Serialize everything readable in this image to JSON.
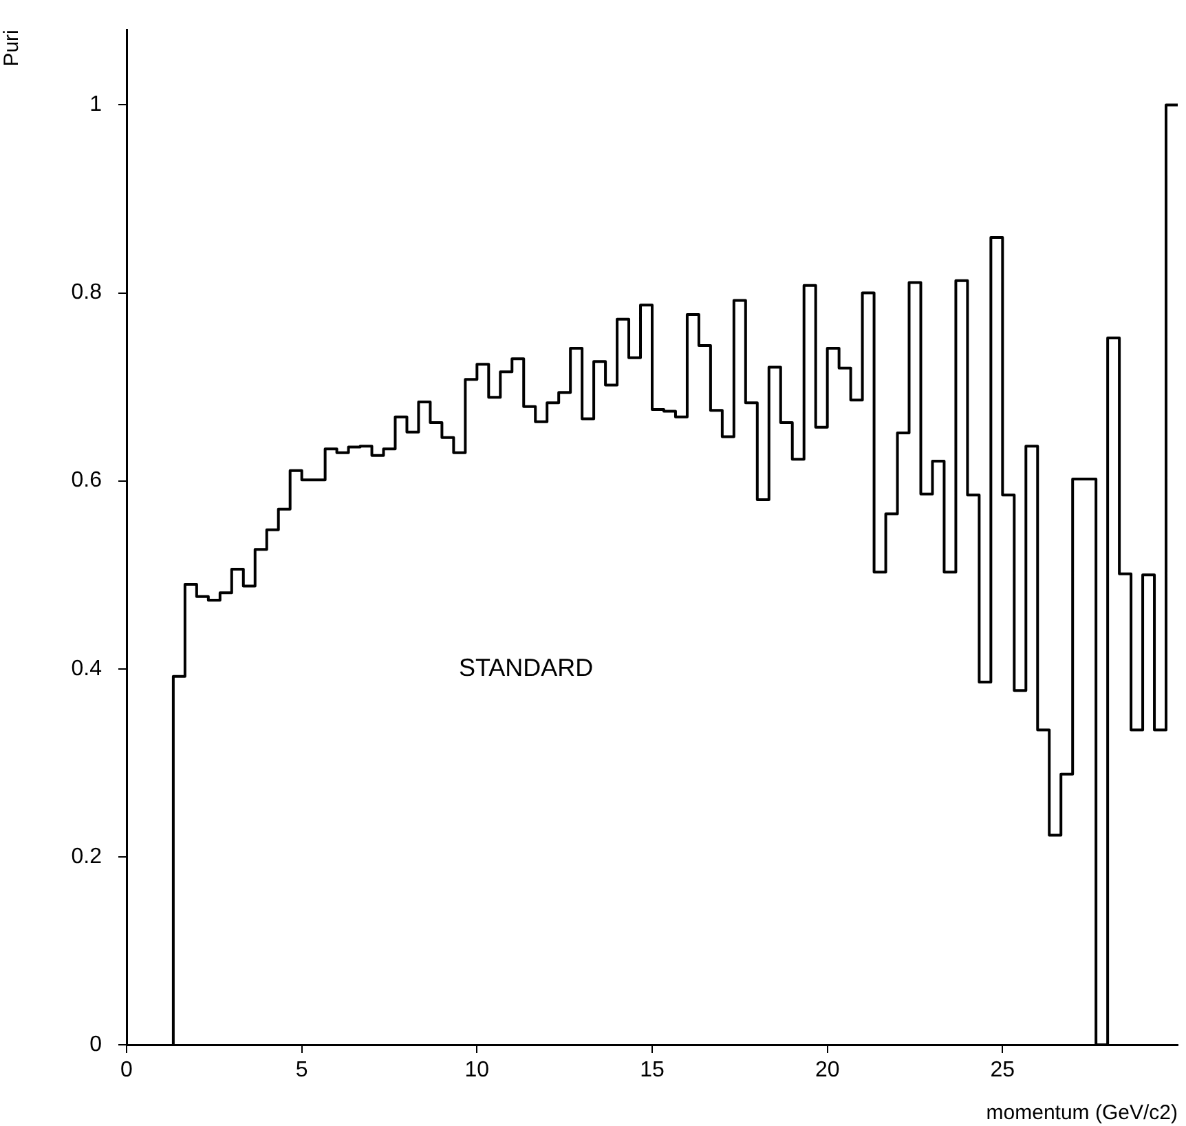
{
  "chart_data": {
    "type": "histogram",
    "xlabel": "momentum (GeV/c2)",
    "ylabel": "Puri",
    "annotations": [
      "STANDARD"
    ],
    "bins": [
      1.333,
      1.667,
      2,
      2.333,
      2.667,
      3,
      3.333,
      3.667,
      4,
      4.333,
      4.667,
      5,
      5.333,
      5.667,
      6,
      6.333,
      6.667,
      7,
      7.333,
      7.667,
      8,
      8.333,
      8.667,
      9,
      9.333,
      9.667,
      10,
      10.333,
      10.667,
      11,
      11.333,
      11.667,
      12,
      12.333,
      12.667,
      13,
      13.333,
      13.667,
      14,
      14.333,
      14.667,
      15,
      15.333,
      15.667,
      16,
      16.333,
      16.667,
      17,
      17.333,
      17.667,
      18,
      18.333,
      18.667,
      19,
      19.333,
      19.667,
      20,
      20.333,
      20.667,
      21,
      21.333,
      21.667,
      22,
      22.333,
      22.667,
      23,
      23.333,
      23.667,
      24,
      24.333,
      24.667,
      25,
      25.333,
      25.667,
      26,
      26.333,
      26.667,
      27,
      27.333,
      27.667,
      28,
      28.333,
      28.667,
      29,
      29.333,
      29.667,
      30
    ],
    "values": [
      0.392,
      0.49,
      0.477,
      0.473,
      0.481,
      0.506,
      0.488,
      0.527,
      0.548,
      0.57,
      0.611,
      0.601,
      0.601,
      0.634,
      0.63,
      0.636,
      0.637,
      0.627,
      0.634,
      0.668,
      0.652,
      0.684,
      0.662,
      0.646,
      0.63,
      0.708,
      0.724,
      0.689,
      0.716,
      0.73,
      0.679,
      0.663,
      0.683,
      0.694,
      0.741,
      0.666,
      0.727,
      0.702,
      0.772,
      0.731,
      0.787,
      0.676,
      0.674,
      0.668,
      0.777,
      0.744,
      0.675,
      0.647,
      0.792,
      0.683,
      0.58,
      0.721,
      0.662,
      0.623,
      0.808,
      0.657,
      0.741,
      0.72,
      0.686,
      0.8,
      0.503,
      0.565,
      0.651,
      0.811,
      0.586,
      0.621,
      0.503,
      0.813,
      0.585,
      0.386,
      0.859,
      0.585,
      0.377,
      0.637,
      0.335,
      0.223,
      0.288,
      0.602,
      0.602,
      0,
      0.752,
      0.501,
      0.335,
      0.5,
      0.335,
      1
    ],
    "color": "#000000",
    "xlim": [
      0,
      30
    ],
    "ylim": [
      0,
      1.08
    ],
    "xticks": [
      0,
      5,
      10,
      15,
      20,
      25
    ],
    "yticks": [
      0,
      0.2,
      0.4,
      0.6,
      0.8,
      1
    ],
    "grid": false,
    "legend": false
  }
}
